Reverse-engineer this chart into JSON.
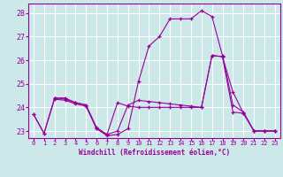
{
  "xlabel": "Windchill (Refroidissement éolien,°C)",
  "ylabel": "",
  "background_color": "#cce8e8",
  "grid_color": "#ffffff",
  "line_color": "#990099",
  "xlim": [
    -0.5,
    23.5
  ],
  "ylim": [
    22.7,
    28.4
  ],
  "yticks": [
    23,
    24,
    25,
    26,
    27,
    28
  ],
  "xticks": [
    0,
    1,
    2,
    3,
    4,
    5,
    6,
    7,
    8,
    9,
    10,
    11,
    12,
    13,
    14,
    15,
    16,
    17,
    18,
    19,
    20,
    21,
    22,
    23
  ],
  "series1_x": [
    0,
    1,
    2,
    3,
    4,
    5,
    6,
    7,
    8,
    9,
    10,
    11,
    12,
    13,
    14,
    15,
    16,
    17,
    18,
    19,
    20,
    21,
    22,
    23
  ],
  "series1_y": [
    23.7,
    22.9,
    24.4,
    24.4,
    24.2,
    24.1,
    23.1,
    22.8,
    22.85,
    23.1,
    25.1,
    26.6,
    27.0,
    27.75,
    27.75,
    27.75,
    28.1,
    27.85,
    26.2,
    24.1,
    23.8,
    23.0,
    23.0,
    23.0
  ],
  "series2_x": [
    2,
    3,
    4,
    5,
    6,
    7,
    8,
    9,
    10,
    11,
    12,
    13,
    14,
    15,
    16,
    17,
    18,
    19,
    20,
    21,
    22,
    23
  ],
  "series2_y": [
    24.4,
    24.35,
    24.2,
    24.1,
    23.15,
    22.85,
    23.0,
    24.1,
    24.3,
    24.25,
    24.2,
    24.15,
    24.1,
    24.05,
    24.0,
    26.2,
    26.15,
    24.65,
    23.75,
    23.0,
    23.0,
    23.0
  ],
  "series3_x": [
    0,
    1,
    2,
    3,
    4,
    5,
    6,
    7,
    8,
    9,
    10,
    11,
    12,
    13,
    14,
    15,
    16,
    17,
    18,
    19,
    20,
    21,
    22,
    23
  ],
  "series3_y": [
    23.7,
    22.9,
    24.35,
    24.3,
    24.15,
    24.05,
    23.1,
    22.85,
    24.2,
    24.05,
    24.0,
    24.0,
    24.0,
    24.0,
    24.0,
    24.0,
    24.0,
    26.2,
    26.15,
    23.8,
    23.75,
    23.0,
    23.0,
    23.0
  ]
}
